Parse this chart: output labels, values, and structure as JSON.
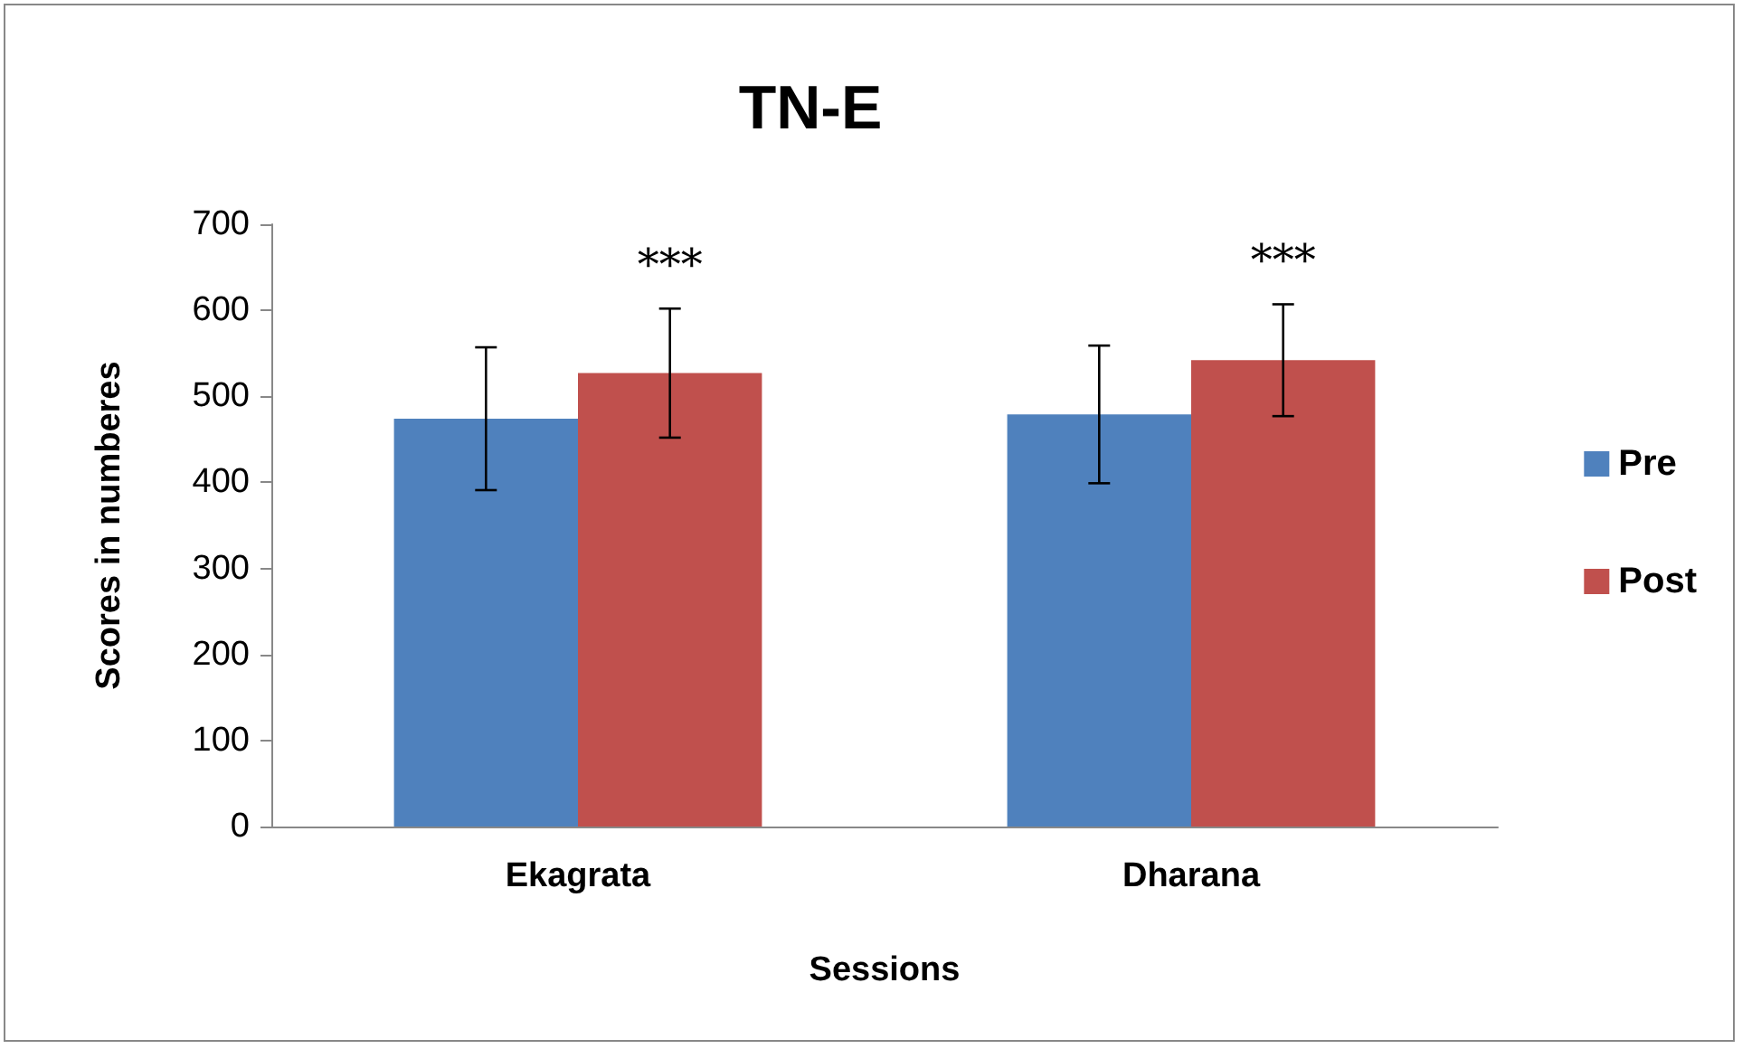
{
  "chart_data": {
    "type": "bar",
    "title": "TN-E",
    "xlabel": "Sessions",
    "ylabel": "Scores in numberes",
    "categories": [
      "Ekagrata",
      "Dharana"
    ],
    "series": [
      {
        "name": "Pre",
        "color": "#4f81bd",
        "values": [
          474,
          479
        ],
        "errors": [
          83,
          80
        ]
      },
      {
        "name": "Post",
        "color": "#c0504d",
        "values": [
          527,
          542
        ],
        "errors": [
          75,
          65
        ]
      }
    ],
    "annotations": [
      "***",
      "***"
    ],
    "ylim": [
      0,
      700
    ],
    "yticks": [
      0,
      100,
      200,
      300,
      400,
      500,
      600,
      700
    ],
    "grid": false,
    "legend": "right"
  }
}
